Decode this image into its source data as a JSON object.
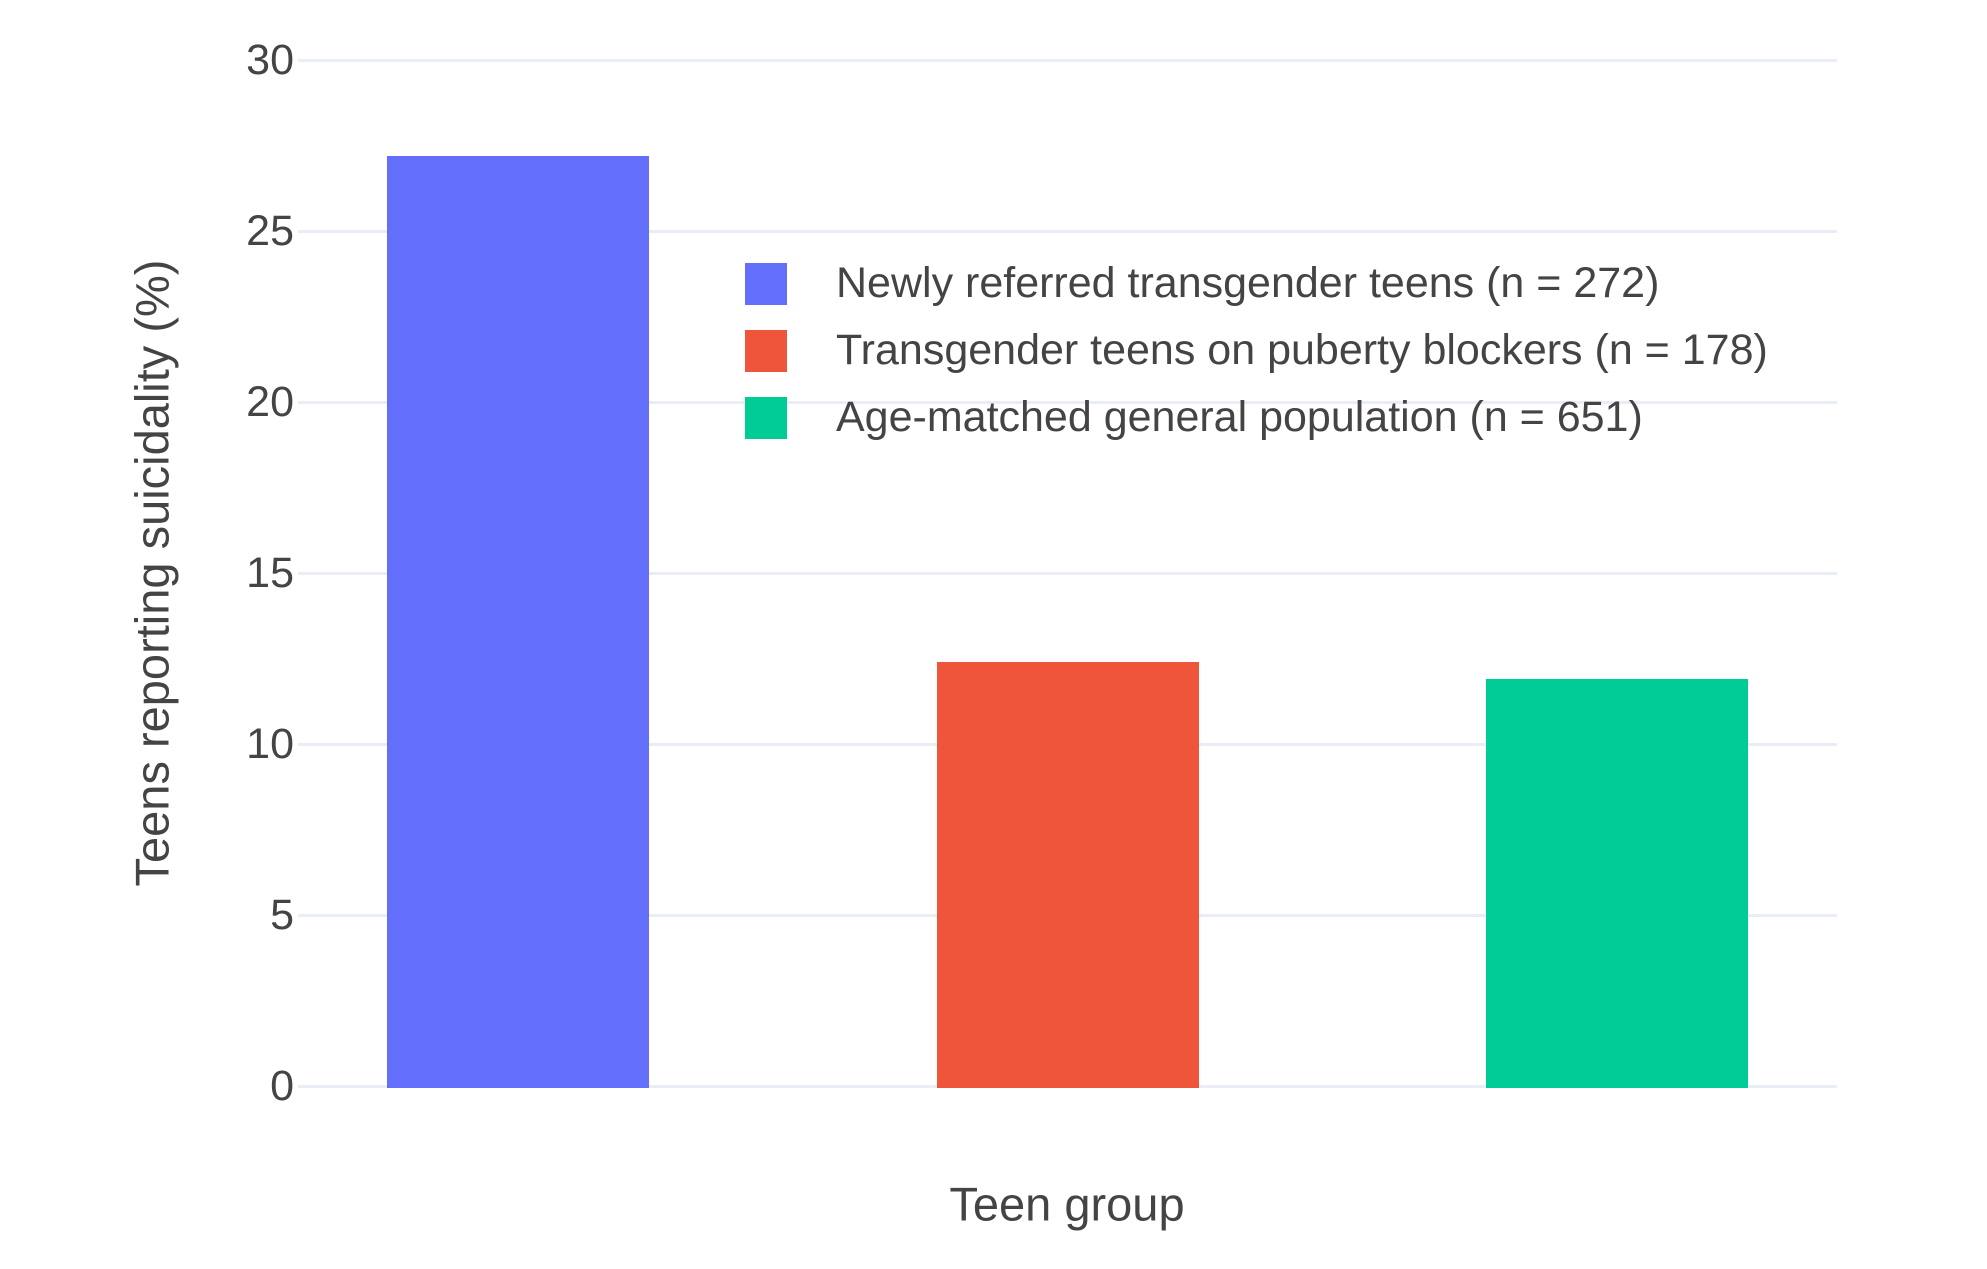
{
  "chart_data": {
    "type": "bar",
    "title": "",
    "xlabel": "Teen group",
    "ylabel": "Teens reporting suicidality (%)",
    "ylim": [
      0,
      30
    ],
    "yticks": [
      0,
      5,
      10,
      15,
      20,
      25,
      30
    ],
    "grid": true,
    "legend_position": "inside top, left of plot center",
    "categories": [
      "Newly referred transgender teens (n = 272)",
      "Transgender teens on puberty blockers (n = 178)",
      "Age-matched general population (n = 651)"
    ],
    "series": [
      {
        "name": "Newly referred transgender teens (n = 272)",
        "value": 27.2,
        "color": "#636EFA"
      },
      {
        "name": "Transgender teens on puberty blockers (n = 178)",
        "value": 12.4,
        "color": "#EF553B"
      },
      {
        "name": "Age-matched general population (n = 651)",
        "value": 11.9,
        "color": "#00CC96"
      }
    ]
  },
  "colors": {
    "background": "#FFFFFF",
    "gridline": "#E9EEF6",
    "text": "#444444"
  }
}
